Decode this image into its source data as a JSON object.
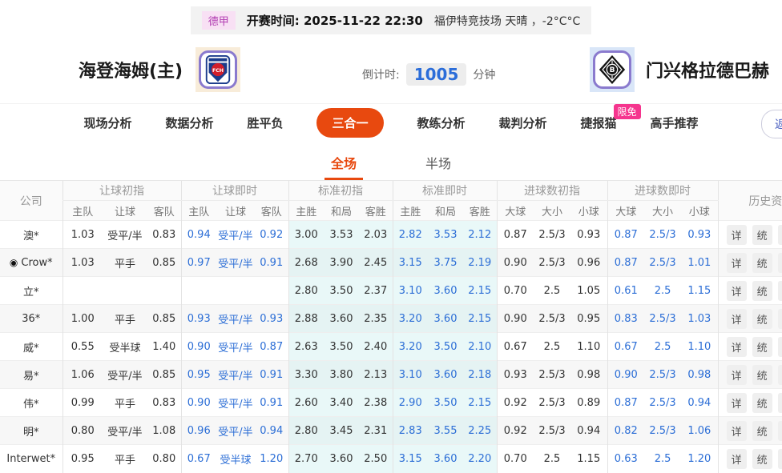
{
  "top_bar": {
    "league": "德甲",
    "kickoff_label": "开赛时间:",
    "kickoff_time": "2025-11-22 22:30",
    "venue_weather": "福伊特竞技场  天晴 ，-2°C°C"
  },
  "match_header": {
    "home_name": "海登海姆(主)",
    "away_name": "门兴格拉德巴赫",
    "home_crest_text": "FCH",
    "away_crest_text": "B",
    "countdown_label": "倒计时:",
    "countdown_value": "1005",
    "countdown_unit": "分钟"
  },
  "nav": {
    "tabs": [
      {
        "label": "现场分析"
      },
      {
        "label": "数据分析"
      },
      {
        "label": "胜平负"
      },
      {
        "label": "三合一",
        "active": true
      },
      {
        "label": "教练分析"
      },
      {
        "label": "裁判分析"
      },
      {
        "label": "捷报猫",
        "badge": "限免"
      },
      {
        "label": "高手推荐"
      }
    ],
    "back_button": "返回"
  },
  "sub_tabs": [
    {
      "label": "全场",
      "active": true
    },
    {
      "label": "半场"
    }
  ],
  "odds_table": {
    "company_header": "公司",
    "history_header": "历史资料",
    "groups": [
      {
        "name": "让球初指",
        "cols": [
          "主队",
          "让球",
          "客队"
        ]
      },
      {
        "name": "让球即时",
        "cols": [
          "主队",
          "让球",
          "客队"
        ]
      },
      {
        "name": "标准初指",
        "cols": [
          "主胜",
          "和局",
          "客胜"
        ]
      },
      {
        "name": "标准即时",
        "cols": [
          "主胜",
          "和局",
          "客胜"
        ]
      },
      {
        "name": "进球数初指",
        "cols": [
          "大球",
          "大小",
          "小球"
        ]
      },
      {
        "name": "进球数即时",
        "cols": [
          "大球",
          "大小",
          "小球"
        ]
      }
    ],
    "row_actions": [
      "详",
      "统",
      "主"
    ],
    "rows": [
      {
        "company": "澳*",
        "icon": "",
        "handicap_initial": [
          "1.03",
          "受平/半",
          "0.83"
        ],
        "handicap_live": [
          "0.94",
          "受平/半",
          "0.92"
        ],
        "standard_initial": [
          "3.00",
          "3.53",
          "2.03"
        ],
        "standard_live": [
          "2.82",
          "3.53",
          "2.12"
        ],
        "goals_initial": [
          "0.87",
          "2.5/3",
          "0.93"
        ],
        "goals_live": [
          "0.87",
          "2.5/3",
          "0.93"
        ]
      },
      {
        "company": "Crow*",
        "icon": "◉",
        "handicap_initial": [
          "1.03",
          "平手",
          "0.85"
        ],
        "handicap_live": [
          "0.97",
          "受平/半",
          "0.91"
        ],
        "standard_initial": [
          "2.68",
          "3.90",
          "2.45"
        ],
        "standard_live": [
          "3.15",
          "3.75",
          "2.19"
        ],
        "goals_initial": [
          "0.90",
          "2.5/3",
          "0.96"
        ],
        "goals_live": [
          "0.87",
          "2.5/3",
          "1.01"
        ]
      },
      {
        "company": "立*",
        "icon": "",
        "handicap_initial": [
          "",
          "",
          ""
        ],
        "handicap_live": [
          "",
          "",
          ""
        ],
        "standard_initial": [
          "2.80",
          "3.50",
          "2.37"
        ],
        "standard_live": [
          "3.10",
          "3.60",
          "2.15"
        ],
        "goals_initial": [
          "0.70",
          "2.5",
          "1.05"
        ],
        "goals_live": [
          "0.61",
          "2.5",
          "1.15"
        ]
      },
      {
        "company": "36*",
        "icon": "",
        "handicap_initial": [
          "1.00",
          "平手",
          "0.85"
        ],
        "handicap_live": [
          "0.93",
          "受平/半",
          "0.93"
        ],
        "standard_initial": [
          "2.88",
          "3.60",
          "2.35"
        ],
        "standard_live": [
          "3.20",
          "3.60",
          "2.15"
        ],
        "goals_initial": [
          "0.90",
          "2.5/3",
          "0.95"
        ],
        "goals_live": [
          "0.83",
          "2.5/3",
          "1.03"
        ]
      },
      {
        "company": "威*",
        "icon": "",
        "handicap_initial": [
          "0.55",
          "受半球",
          "1.40"
        ],
        "handicap_live": [
          "0.90",
          "受平/半",
          "0.87"
        ],
        "standard_initial": [
          "2.63",
          "3.50",
          "2.40"
        ],
        "standard_live": [
          "3.20",
          "3.50",
          "2.10"
        ],
        "goals_initial": [
          "0.67",
          "2.5",
          "1.10"
        ],
        "goals_live": [
          "0.67",
          "2.5",
          "1.10"
        ]
      },
      {
        "company": "易*",
        "icon": "",
        "handicap_initial": [
          "1.06",
          "受平/半",
          "0.85"
        ],
        "handicap_live": [
          "0.95",
          "受平/半",
          "0.91"
        ],
        "standard_initial": [
          "3.30",
          "3.80",
          "2.13"
        ],
        "standard_live": [
          "3.10",
          "3.60",
          "2.18"
        ],
        "goals_initial": [
          "0.93",
          "2.5/3",
          "0.98"
        ],
        "goals_live": [
          "0.90",
          "2.5/3",
          "0.98"
        ]
      },
      {
        "company": "伟*",
        "icon": "",
        "handicap_initial": [
          "0.99",
          "平手",
          "0.83"
        ],
        "handicap_live": [
          "0.90",
          "受平/半",
          "0.91"
        ],
        "standard_initial": [
          "2.60",
          "3.40",
          "2.38"
        ],
        "standard_live": [
          "2.90",
          "3.50",
          "2.15"
        ],
        "goals_initial": [
          "0.92",
          "2.5/3",
          "0.89"
        ],
        "goals_live": [
          "0.87",
          "2.5/3",
          "0.94"
        ]
      },
      {
        "company": "明*",
        "icon": "",
        "handicap_initial": [
          "0.80",
          "受平/半",
          "1.08"
        ],
        "handicap_live": [
          "0.96",
          "受平/半",
          "0.94"
        ],
        "standard_initial": [
          "2.80",
          "3.45",
          "2.31"
        ],
        "standard_live": [
          "2.83",
          "3.55",
          "2.25"
        ],
        "goals_initial": [
          "0.92",
          "2.5/3",
          "0.94"
        ],
        "goals_live": [
          "0.82",
          "2.5/3",
          "1.06"
        ]
      },
      {
        "company": "Interwet*",
        "icon": "",
        "handicap_initial": [
          "0.95",
          "平手",
          "0.80"
        ],
        "handicap_live": [
          "0.67",
          "受半球",
          "1.20"
        ],
        "standard_initial": [
          "2.70",
          "3.60",
          "2.50"
        ],
        "standard_live": [
          "3.15",
          "3.60",
          "2.20"
        ],
        "goals_initial": [
          "0.70",
          "2.5",
          "1.15"
        ],
        "goals_live": [
          "0.63",
          "2.5",
          "1.20"
        ]
      }
    ]
  },
  "colors": {
    "accent_orange": "#e8490f",
    "live_odds_blue": "#2c6ed6",
    "standard_col_bg": "#e9f8f8",
    "limit_badge_pink": "#f5358e",
    "league_badge_text": "#b23eb2",
    "countdown_blue": "#2b6dd9",
    "crest_border_purple": "#8a7ace"
  }
}
